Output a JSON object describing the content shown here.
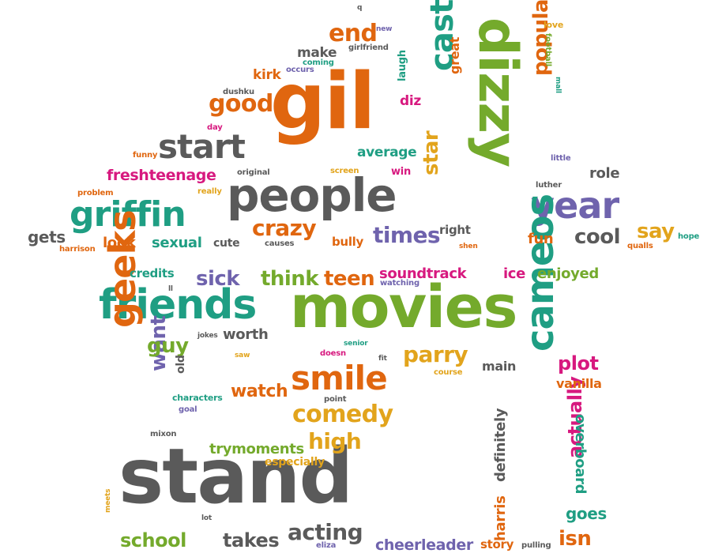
{
  "palette": {
    "orange": "#e0660f",
    "green": "#74aa2c",
    "gray": "#5a5a5a",
    "teal": "#1f9e83",
    "purple": "#6f63ad",
    "yellow": "#e2a41c",
    "pink": "#d7197f"
  },
  "words": [
    {
      "text": "gil",
      "color": "orange"
    },
    {
      "text": "people",
      "color": "gray"
    },
    {
      "text": "dizzy",
      "color": "green"
    },
    {
      "text": "movies",
      "color": "green"
    },
    {
      "text": "stand",
      "color": "gray"
    },
    {
      "text": "griffin",
      "color": "teal"
    },
    {
      "text": "start",
      "color": "gray"
    },
    {
      "text": "friends",
      "color": "teal"
    },
    {
      "text": "year",
      "color": "purple"
    },
    {
      "text": "geeks",
      "color": "orange"
    },
    {
      "text": "cameos",
      "color": "teal"
    },
    {
      "text": "smile",
      "color": "orange"
    },
    {
      "text": "cast",
      "color": "teal"
    },
    {
      "text": "comedy",
      "color": "yellow"
    },
    {
      "text": "good",
      "color": "orange"
    },
    {
      "text": "end",
      "color": "orange"
    },
    {
      "text": "times",
      "color": "purple"
    },
    {
      "text": "crazy",
      "color": "orange"
    },
    {
      "text": "popular",
      "color": "orange"
    },
    {
      "text": "star",
      "color": "yellow"
    },
    {
      "text": "cool",
      "color": "gray"
    },
    {
      "text": "say",
      "color": "yellow"
    },
    {
      "text": "teen",
      "color": "orange"
    },
    {
      "text": "sick",
      "color": "purple"
    },
    {
      "text": "think",
      "color": "green"
    },
    {
      "text": "want",
      "color": "purple"
    },
    {
      "text": "guy",
      "color": "green"
    },
    {
      "text": "parry",
      "color": "yellow"
    },
    {
      "text": "high",
      "color": "yellow"
    },
    {
      "text": "acting",
      "color": "gray"
    },
    {
      "text": "school",
      "color": "green"
    },
    {
      "text": "takes",
      "color": "gray"
    },
    {
      "text": "watch",
      "color": "orange"
    },
    {
      "text": "actually",
      "color": "pink"
    },
    {
      "text": "plot",
      "color": "pink"
    },
    {
      "text": "cheerleader",
      "color": "purple"
    },
    {
      "text": "isn",
      "color": "orange"
    },
    {
      "text": "goes",
      "color": "teal"
    },
    {
      "text": "overboard",
      "color": "teal"
    },
    {
      "text": "definitely",
      "color": "gray"
    },
    {
      "text": "harris",
      "color": "orange"
    },
    {
      "text": "gets",
      "color": "gray"
    },
    {
      "text": "look",
      "color": "orange"
    },
    {
      "text": "sexual",
      "color": "teal"
    },
    {
      "text": "freshteenage",
      "color": "pink"
    },
    {
      "text": "soundtrack",
      "color": "pink"
    },
    {
      "text": "worth",
      "color": "gray"
    },
    {
      "text": "trymoments",
      "color": "green"
    },
    {
      "text": "enjoyed",
      "color": "green"
    },
    {
      "text": "ice",
      "color": "pink"
    },
    {
      "text": "vanilla",
      "color": "orange"
    },
    {
      "text": "main",
      "color": "gray"
    },
    {
      "text": "story",
      "color": "orange"
    },
    {
      "text": "credits",
      "color": "teal"
    },
    {
      "text": "average",
      "color": "teal"
    },
    {
      "text": "role",
      "color": "gray"
    },
    {
      "text": "fun",
      "color": "orange"
    },
    {
      "text": "right",
      "color": "gray"
    },
    {
      "text": "bully",
      "color": "orange"
    },
    {
      "text": "make",
      "color": "gray"
    },
    {
      "text": "kirk",
      "color": "orange"
    },
    {
      "text": "great",
      "color": "orange"
    },
    {
      "text": "diz",
      "color": "pink"
    },
    {
      "text": "laugh",
      "color": "teal"
    },
    {
      "text": "especially",
      "color": "yellow"
    },
    {
      "text": "old",
      "color": "gray"
    },
    {
      "text": "win",
      "color": "pink"
    },
    {
      "text": "cute",
      "color": "gray"
    },
    {
      "text": "love",
      "color": "yellow"
    },
    {
      "text": "football",
      "color": "green"
    },
    {
      "text": "mall",
      "color": "teal"
    },
    {
      "text": "little",
      "color": "purple"
    },
    {
      "text": "luther",
      "color": "gray"
    },
    {
      "text": "hope",
      "color": "teal"
    },
    {
      "text": "qualls",
      "color": "orange"
    },
    {
      "text": "shen",
      "color": "orange"
    },
    {
      "text": "causes",
      "color": "gray"
    },
    {
      "text": "harrison",
      "color": "orange"
    },
    {
      "text": "problem",
      "color": "orange"
    },
    {
      "text": "really",
      "color": "yellow"
    },
    {
      "text": "original",
      "color": "gray"
    },
    {
      "text": "screen",
      "color": "yellow"
    },
    {
      "text": "funny",
      "color": "orange"
    },
    {
      "text": "day",
      "color": "pink"
    },
    {
      "text": "dushku",
      "color": "gray"
    },
    {
      "text": "occurs",
      "color": "purple"
    },
    {
      "text": "coming",
      "color": "teal"
    },
    {
      "text": "girlfriend",
      "color": "gray"
    },
    {
      "text": "new",
      "color": "purple"
    },
    {
      "text": "q",
      "color": "gray"
    },
    {
      "text": "watching",
      "color": "purple"
    },
    {
      "text": "jokes",
      "color": "gray"
    },
    {
      "text": "saw",
      "color": "yellow"
    },
    {
      "text": "ll",
      "color": "gray"
    },
    {
      "text": "doesn",
      "color": "pink"
    },
    {
      "text": "senior",
      "color": "teal"
    },
    {
      "text": "fit",
      "color": "gray"
    },
    {
      "text": "course",
      "color": "yellow"
    },
    {
      "text": "point",
      "color": "gray"
    },
    {
      "text": "characters",
      "color": "teal"
    },
    {
      "text": "goal",
      "color": "purple"
    },
    {
      "text": "mixon",
      "color": "gray"
    },
    {
      "text": "meets",
      "color": "yellow"
    },
    {
      "text": "lot",
      "color": "gray"
    },
    {
      "text": "eliza",
      "color": "purple"
    },
    {
      "text": "pulling",
      "color": "gray"
    }
  ]
}
